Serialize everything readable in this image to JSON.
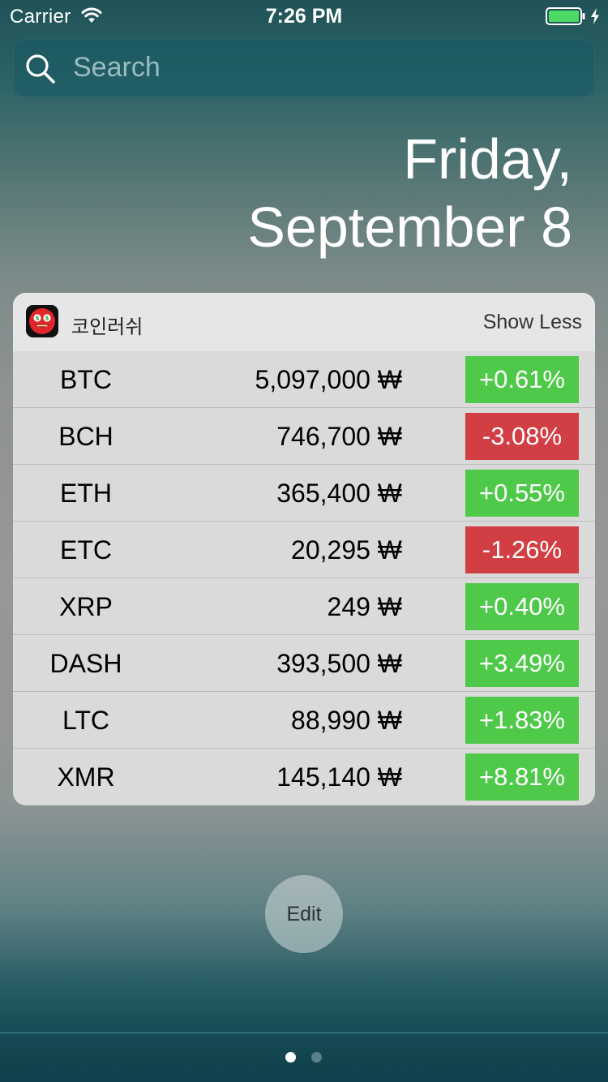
{
  "status_bar": {
    "carrier": "Carrier",
    "time": "7:26 PM"
  },
  "search": {
    "placeholder": "Search"
  },
  "date": {
    "day": "Friday,",
    "date": "September 8"
  },
  "widget": {
    "app_name": "코인러쉬",
    "show_less": "Show Less",
    "rows": [
      {
        "symbol": "BTC",
        "price": "5,097,000 ₩",
        "change": "+0.61%",
        "direction": "up"
      },
      {
        "symbol": "BCH",
        "price": "746,700 ₩",
        "change": "-3.08%",
        "direction": "down"
      },
      {
        "symbol": "ETH",
        "price": "365,400 ₩",
        "change": "+0.55%",
        "direction": "up"
      },
      {
        "symbol": "ETC",
        "price": "20,295 ₩",
        "change": "-1.26%",
        "direction": "down"
      },
      {
        "symbol": "XRP",
        "price": "249 ₩",
        "change": "+0.40%",
        "direction": "up"
      },
      {
        "symbol": "DASH",
        "price": "393,500 ₩",
        "change": "+3.49%",
        "direction": "up"
      },
      {
        "symbol": "LTC",
        "price": "88,990 ₩",
        "change": "+1.83%",
        "direction": "up"
      },
      {
        "symbol": "XMR",
        "price": "145,140 ₩",
        "change": "+8.81%",
        "direction": "up"
      }
    ]
  },
  "edit_button": {
    "label": "Edit"
  },
  "page_indicator": {
    "current": 1,
    "total": 2
  },
  "colors": {
    "up": "#4fc94a",
    "down": "#d13f44",
    "battery": "#4cd964"
  },
  "icons": {
    "wifi": "wifi-icon",
    "battery": "battery-icon",
    "charging": "charging-bolt-icon",
    "search": "search-icon",
    "app": "coin-rush-app-icon"
  }
}
